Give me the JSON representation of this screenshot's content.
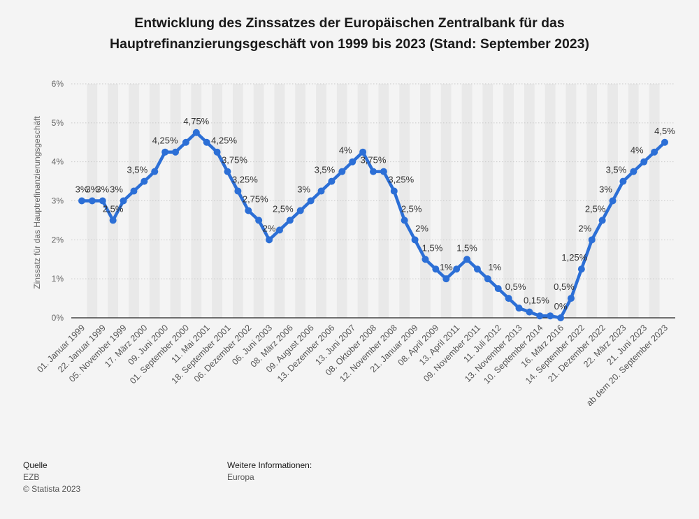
{
  "title_line1": "Entwicklung des Zinssatzes der Europäischen Zentralbank für das",
  "title_line2": "Hauptrefinanzierungsgeschäft von 1999 bis 2023 (Stand: September 2023)",
  "footer": {
    "source_heading": "Quelle",
    "source_name": "EZB",
    "copyright": "© Statista 2023",
    "info_heading": "Weitere Informationen:",
    "info_text": "Europa"
  },
  "colors": {
    "line": "#2c6fd6",
    "background": "#f4f4f4",
    "band": "#e9e9e9",
    "grid": "#c9c9c9"
  },
  "chart_data": {
    "type": "line",
    "title": "Entwicklung des Zinssatzes der Europäischen Zentralbank für das Hauptrefinanzierungsgeschäft von 1999 bis 2023 (Stand: September 2023)",
    "ylabel": "Zinssatz für das Hauptrefinanzierungsgeschäft",
    "xlabel": "",
    "ylim": [
      0,
      6
    ],
    "yticks": [
      "0%",
      "1%",
      "2%",
      "3%",
      "4%",
      "5%",
      "6%"
    ],
    "grid": true,
    "legend": "none",
    "x_tick_labels": [
      "01. Januar 1999",
      "22. Januar 1999",
      "05. November 1999",
      "17. März 2000",
      "09. Juni 2000",
      "01. September 2000",
      "11. Mai 2001",
      "18. September 2001",
      "06. Dezember 2002",
      "06. Juni 2003",
      "08. März 2006",
      "09. August 2006",
      "13. Dezember 2006",
      "13. Juni 2007",
      "08. Oktober 2008",
      "12. November 2008",
      "21. Januar 2009",
      "08. April 2009",
      "13. April 2011",
      "09. November 2011",
      "11. Juli 2012",
      "13. November 2013",
      "10. September 2014",
      "16. März 2016",
      "14. September 2022",
      "21. Dezember 2022",
      "22. März 2023",
      "21. Juni 2023",
      "ab dem 20. September 2023"
    ],
    "values": [
      3,
      3,
      3,
      2.5,
      3,
      3.25,
      3.5,
      3.75,
      4.25,
      4.25,
      4.5,
      4.75,
      4.5,
      4.25,
      3.75,
      3.25,
      2.75,
      2.5,
      2,
      2.25,
      2.5,
      2.75,
      3,
      3.25,
      3.5,
      3.75,
      4,
      4.25,
      3.75,
      3.75,
      3.25,
      2.5,
      2,
      1.5,
      1.25,
      1,
      1.25,
      1.5,
      1.25,
      1,
      0.75,
      0.5,
      0.25,
      0.15,
      0.05,
      0.05,
      0,
      0.5,
      1.25,
      2,
      2.5,
      3,
      3.5,
      3.75,
      4,
      4.25,
      4.5
    ],
    "data_labels": [
      "3%",
      "3%",
      "3%",
      "2,5%",
      "3%",
      "",
      "3,5%",
      "",
      "4,25%",
      "",
      "",
      "4,75%",
      "",
      "4,25%",
      "3,75%",
      "3,25%",
      "2,75%",
      "",
      "2%",
      "",
      "2,5%",
      "",
      "3%",
      "",
      "3,5%",
      "",
      "4%",
      "",
      "3,75%",
      "",
      "3,25%",
      "2,5%",
      "2%",
      "1,5%",
      "",
      "1%",
      "",
      "1,5%",
      "",
      "1%",
      "",
      "0,5%",
      "",
      "0,15%",
      "",
      "",
      "0%",
      "0,5%",
      "1,25%",
      "2%",
      "2,5%",
      "3%",
      "3,5%",
      "",
      "4%",
      "",
      "4,5%"
    ]
  }
}
